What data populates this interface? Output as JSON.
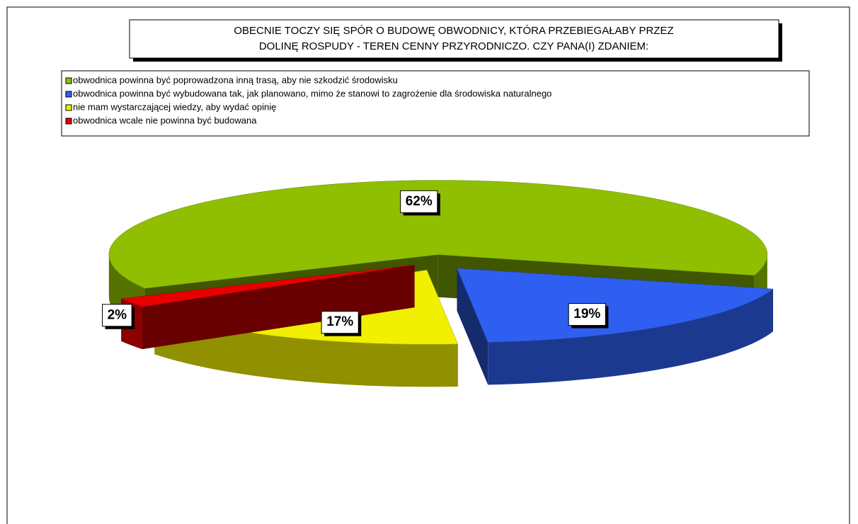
{
  "chart_data": {
    "type": "pie3d",
    "title": [
      "OBECNIE TOCZY SIĘ SPÓR O BUDOWĘ OBWODNICY, KTÓRA PRZEBIEGAŁABY PRZEZ",
      "DOLINĘ ROSPUDY - TEREN CENNY PRZYRODNICZO. CZY PANA(I) ZDANIEM:"
    ],
    "categories": [
      "obwodnica powinna  być poprowadzona  inną trasą, aby nie szkodzić środowisku",
      "obwodnica powinna  być wybudowana tak, jak planowano, mimo że stanowi to zagrożenie dla środowiska  naturalnego",
      "nie mam wystarczającej  wiedzy, aby wydać opinię",
      "obwodnica wcale nie powinna być budowana"
    ],
    "values": [
      62,
      19,
      17,
      2
    ],
    "value_labels": [
      "62%",
      "19%",
      "17%",
      "2%"
    ],
    "colors": [
      "#8fbf00",
      "#2f5ff0",
      "#f0f000",
      "#e80000"
    ],
    "legend": "top"
  }
}
